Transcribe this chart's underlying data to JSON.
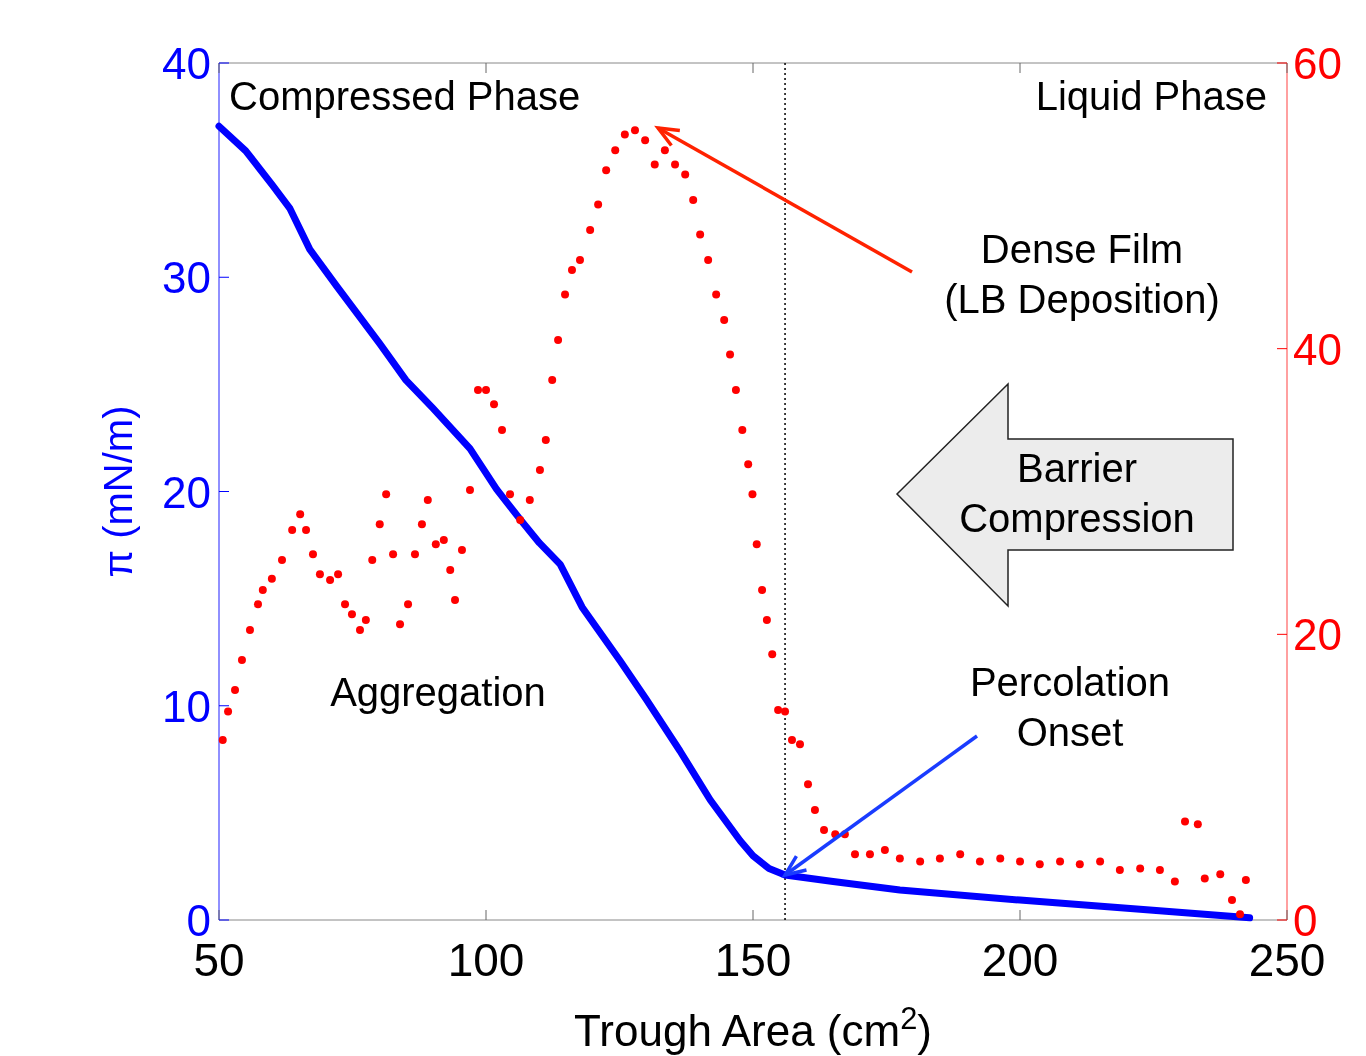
{
  "chart_data": {
    "type": "line",
    "xlabel": "Trough Area (cm$^{2}$)",
    "ylabel": "π (mN/m)",
    "xlim": [
      50,
      250
    ],
    "xticks": [
      50,
      100,
      150,
      200,
      250
    ],
    "ylim": [
      0,
      40
    ],
    "yticks": [
      0,
      10,
      20,
      30,
      40
    ],
    "y2lim": [
      0,
      60
    ],
    "y2ticks": [
      0,
      20,
      40,
      60
    ],
    "grid": false,
    "series": [
      {
        "color": "#0000ff",
        "marker": "none",
        "x": [
          50,
          55,
          60,
          63.3,
          67,
          72,
          80.1,
          85,
          90,
          97,
          102,
          106.4,
          110,
          113.9,
          118,
          125.1,
          130,
          136.3,
          142,
          147.6,
          150,
          153,
          156,
          165,
          177.5,
          200,
          224.3,
          243
        ],
        "values": [
          37.05,
          35.9,
          34.3,
          33.2,
          31.3,
          29.6,
          26.9,
          25.2,
          23.9,
          22,
          20.1,
          18.7,
          17.6,
          16.6,
          14.6,
          12.1,
          10.3,
          7.9,
          5.6,
          3.7,
          3,
          2.4,
          2.1,
          1.8,
          1.4,
          0.93,
          0.47,
          0.1
        ]
      },
      {
        "type": "scatter",
        "color": "#ff0000",
        "marker": "circle",
        "axis": "y2",
        "x": [
          50.7,
          51.7,
          53,
          54.3,
          55.8,
          57.3,
          58.2,
          59.9,
          61.8,
          63.7,
          65.2,
          66.3,
          67.6,
          68.9,
          70.8,
          72.3,
          73.6,
          74.9,
          76.4,
          77.5,
          78.7,
          80.1,
          81.3,
          82.6,
          83.9,
          85.4,
          86.7,
          88,
          89.1,
          90.6,
          92.1,
          93.3,
          94.2,
          95.5,
          97,
          98.5,
          100,
          101.5,
          103,
          104.5,
          106.4,
          108.2,
          110.1,
          111.2,
          112.4,
          113.5,
          114.8,
          116.1,
          117.6,
          119.5,
          121,
          122.5,
          124.2,
          126,
          127.9,
          129.8,
          131.6,
          133.5,
          135.4,
          137.3,
          138.8,
          140.1,
          141.6,
          143.1,
          144.6,
          145.7,
          146.8,
          148,
          149.1,
          149.9,
          150.7,
          151.7,
          152.6,
          153.6,
          154.7,
          156,
          157.3,
          158.8,
          160.3,
          161.6,
          163.3,
          165.4,
          167.2,
          169.1,
          171.9,
          174.7,
          177.5,
          181.3,
          185,
          188.8,
          192.5,
          196.3,
          200,
          203.7,
          207.5,
          211.2,
          215,
          218.7,
          222.5,
          226.2,
          229,
          230.9,
          233.3,
          234.6,
          237.5,
          239.7,
          241.2,
          242.3
        ],
        "values": [
          12.6,
          14.6,
          16.1,
          18.2,
          20.3,
          22.1,
          23.1,
          23.9,
          25.2,
          27.3,
          28.4,
          27.3,
          25.6,
          24.2,
          23.8,
          24.2,
          22.1,
          21.4,
          20.3,
          21,
          25.2,
          27.7,
          29.8,
          25.6,
          20.7,
          22.1,
          25.6,
          27.7,
          29.4,
          26.3,
          26.6,
          24.5,
          22.4,
          25.9,
          30.1,
          37.1,
          37.1,
          36.1,
          34.3,
          29.8,
          28,
          29.4,
          31.5,
          33.6,
          37.8,
          40.6,
          43.8,
          45.5,
          46.2,
          48.3,
          50.1,
          52.5,
          53.9,
          55,
          55.3,
          54.6,
          52.9,
          53.9,
          52.9,
          52.2,
          50.4,
          48,
          46.2,
          43.8,
          42,
          39.6,
          37.1,
          34.3,
          31.9,
          29.8,
          26.3,
          23.1,
          21,
          18.6,
          14.7,
          14.6,
          12.6,
          12.3,
          9.5,
          7.7,
          6.3,
          6,
          6,
          4.6,
          4.6,
          4.9,
          4.3,
          4.1,
          4.3,
          4.6,
          4.1,
          4.3,
          4.1,
          3.9,
          4.1,
          3.9,
          4.1,
          3.5,
          3.6,
          3.5,
          2.7,
          6.9,
          6.7,
          2.9,
          3.2,
          1.4,
          0.4,
          2.8
        ]
      }
    ],
    "ref_lines": [
      {
        "axis": "x",
        "value": 156,
        "color": "#000000",
        "line_style": "dotted"
      }
    ],
    "annotations": [
      "Compressed Phase",
      "Liquid Phase",
      "Dense Film\n(LB Deposition)",
      "Barrier Compression",
      "Aggregation",
      {
        "text": "Percolation\nOnset",
        "x": 156,
        "y": 2.1
      }
    ]
  }
}
